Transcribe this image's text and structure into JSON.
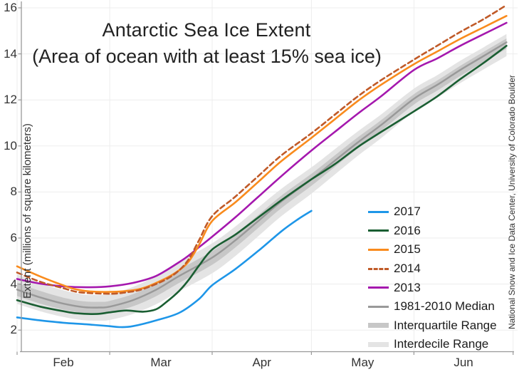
{
  "title": "Antarctic Sea Ice Extent",
  "subtitle": "(Area of ocean with at least 15% sea ice)",
  "y_axis_label": "Extent (millions of square kilometers)",
  "credit": "National Snow and Ice Data Center, University of Colorado Boulder",
  "colors": {
    "y2017": "#1e96e8",
    "y2016": "#1a5e32",
    "y2015": "#f98b1d",
    "y2014": "#c05a28",
    "y2013": "#a518ae",
    "median": "#999999",
    "interquartile": "#c7c7c7",
    "interdecile": "#e4e4e4",
    "grid": "#ededed",
    "axis": "#999999",
    "text": "#333333"
  },
  "chart_data": {
    "type": "line",
    "title": "Antarctic Sea Ice Extent",
    "subtitle": "(Area of ocean with at least 15% sea ice)",
    "xlabel": "",
    "ylabel": "Extent (millions of square kilometers)",
    "x_unit_note": "x = days since Feb 1",
    "ylim": [
      1.05,
      16.35
    ],
    "grid": true,
    "legend_position": "inside lower right",
    "yticks": [
      16,
      14,
      12,
      10,
      8,
      6,
      4,
      2
    ],
    "xticks": [
      {
        "label": "Feb",
        "boundary_day": 0,
        "label_day": 14
      },
      {
        "label": "Mar",
        "boundary_day": 28,
        "label_day": 43.5
      },
      {
        "label": "Apr",
        "boundary_day": 59,
        "label_day": 74
      },
      {
        "label": "May",
        "boundary_day": 89,
        "label_day": 104.5
      },
      {
        "label": "Jun",
        "boundary_day": 120,
        "label_day": 135
      },
      {
        "label": "",
        "boundary_day": 150,
        "label_day": null
      }
    ],
    "bands": [
      {
        "name": "Interdecile Range",
        "color": "#e4e4e4",
        "x": [
          0,
          7,
          14,
          20,
          25,
          28,
          35,
          42,
          49,
          59,
          66,
          73,
          80,
          89,
          96,
          103,
          110,
          120,
          127,
          134,
          141,
          148
        ],
        "hi": [
          4.42,
          4.04,
          3.73,
          3.55,
          3.53,
          3.57,
          3.87,
          4.35,
          4.97,
          5.77,
          6.5,
          7.33,
          8.15,
          9.07,
          9.85,
          10.63,
          11.36,
          12.49,
          13.07,
          13.7,
          14.28,
          14.86
        ],
        "lo": [
          3.14,
          2.82,
          2.57,
          2.43,
          2.41,
          2.44,
          2.7,
          3.12,
          3.69,
          4.47,
          5.22,
          6.09,
          6.96,
          7.93,
          8.75,
          9.57,
          10.33,
          11.49,
          12.09,
          12.73,
          13.32,
          13.9
        ]
      },
      {
        "name": "Interquartile Range",
        "color": "#c7c7c7",
        "x": [
          0,
          7,
          14,
          20,
          25,
          28,
          35,
          42,
          49,
          59,
          66,
          73,
          80,
          89,
          96,
          103,
          110,
          120,
          127,
          134,
          141,
          148
        ],
        "hi": [
          4.06,
          3.7,
          3.41,
          3.25,
          3.23,
          3.27,
          3.56,
          4.02,
          4.63,
          5.43,
          6.17,
          7.01,
          7.85,
          8.79,
          9.58,
          10.37,
          11.11,
          12.25,
          12.84,
          13.48,
          14.08,
          14.67
        ],
        "lo": [
          3.48,
          3.15,
          2.89,
          2.74,
          2.72,
          2.76,
          3.03,
          3.47,
          4.05,
          4.84,
          5.59,
          6.45,
          7.31,
          8.27,
          9.08,
          9.89,
          10.65,
          11.8,
          12.4,
          13.04,
          13.63,
          14.22
        ]
      }
    ],
    "series": [
      {
        "name": "1981-2010 Median",
        "color": "#999999",
        "style": "solid",
        "width": 2.4,
        "points": [
          [
            0,
            3.76
          ],
          [
            7,
            3.42
          ],
          [
            14,
            3.15
          ],
          [
            20,
            3.0
          ],
          [
            25,
            2.98
          ],
          [
            28,
            3.02
          ],
          [
            35,
            3.3
          ],
          [
            42,
            3.75
          ],
          [
            49,
            4.35
          ],
          [
            59,
            5.15
          ],
          [
            66,
            5.9
          ],
          [
            73,
            6.75
          ],
          [
            80,
            7.6
          ],
          [
            89,
            8.55
          ],
          [
            96,
            9.35
          ],
          [
            103,
            10.15
          ],
          [
            110,
            10.9
          ],
          [
            120,
            12.05
          ],
          [
            127,
            12.65
          ],
          [
            134,
            13.3
          ],
          [
            141,
            13.9
          ],
          [
            148,
            14.5
          ]
        ]
      },
      {
        "name": "2016",
        "color": "#1a5e32",
        "style": "solid",
        "width": 2.6,
        "points": [
          [
            0,
            3.3
          ],
          [
            7,
            3.02
          ],
          [
            14,
            2.82
          ],
          [
            18,
            2.73
          ],
          [
            24,
            2.7
          ],
          [
            28,
            2.77
          ],
          [
            33,
            2.85
          ],
          [
            38,
            2.8
          ],
          [
            42,
            2.9
          ],
          [
            45,
            3.2
          ],
          [
            49,
            3.7
          ],
          [
            52,
            4.2
          ],
          [
            55,
            4.8
          ],
          [
            59,
            5.5
          ],
          [
            66,
            6.15
          ],
          [
            73,
            6.9
          ],
          [
            80,
            7.65
          ],
          [
            89,
            8.55
          ],
          [
            96,
            9.2
          ],
          [
            103,
            9.95
          ],
          [
            110,
            10.6
          ],
          [
            120,
            11.5
          ],
          [
            127,
            12.15
          ],
          [
            134,
            12.9
          ],
          [
            141,
            13.6
          ],
          [
            148,
            14.35
          ]
        ]
      },
      {
        "name": "2013",
        "color": "#a518ae",
        "style": "solid",
        "width": 2.6,
        "points": [
          [
            0,
            4.22
          ],
          [
            7,
            4.02
          ],
          [
            14,
            3.9
          ],
          [
            21,
            3.86
          ],
          [
            28,
            3.9
          ],
          [
            35,
            4.05
          ],
          [
            42,
            4.35
          ],
          [
            49,
            4.95
          ],
          [
            52,
            5.25
          ],
          [
            55,
            5.6
          ],
          [
            59,
            6.06
          ],
          [
            66,
            6.9
          ],
          [
            73,
            7.8
          ],
          [
            80,
            8.7
          ],
          [
            89,
            9.8
          ],
          [
            96,
            10.6
          ],
          [
            103,
            11.4
          ],
          [
            110,
            12.15
          ],
          [
            120,
            13.3
          ],
          [
            127,
            13.8
          ],
          [
            134,
            14.35
          ],
          [
            141,
            14.85
          ],
          [
            148,
            15.35
          ]
        ]
      },
      {
        "name": "2015",
        "color": "#f98b1d",
        "style": "solid",
        "width": 2.6,
        "points": [
          [
            0,
            4.77
          ],
          [
            7,
            4.33
          ],
          [
            12,
            4.05
          ],
          [
            17,
            3.8
          ],
          [
            22,
            3.68
          ],
          [
            28,
            3.66
          ],
          [
            33,
            3.7
          ],
          [
            38,
            3.82
          ],
          [
            45,
            4.25
          ],
          [
            49,
            4.6
          ],
          [
            52,
            5.0
          ],
          [
            55,
            5.7
          ],
          [
            59,
            6.74
          ],
          [
            66,
            7.55
          ],
          [
            73,
            8.45
          ],
          [
            80,
            9.35
          ],
          [
            89,
            10.35
          ],
          [
            96,
            11.15
          ],
          [
            103,
            11.95
          ],
          [
            110,
            12.65
          ],
          [
            120,
            13.55
          ],
          [
            127,
            14.1
          ],
          [
            134,
            14.65
          ],
          [
            141,
            15.15
          ],
          [
            148,
            15.65
          ]
        ]
      },
      {
        "name": "2014",
        "color": "#c05a28",
        "style": "dashed",
        "width": 2.6,
        "points": [
          [
            0,
            4.5
          ],
          [
            7,
            4.1
          ],
          [
            14,
            3.82
          ],
          [
            19,
            3.64
          ],
          [
            28,
            3.58
          ],
          [
            33,
            3.64
          ],
          [
            38,
            3.78
          ],
          [
            45,
            4.2
          ],
          [
            49,
            4.6
          ],
          [
            52,
            5.1
          ],
          [
            55,
            5.9
          ],
          [
            59,
            6.95
          ],
          [
            66,
            7.8
          ],
          [
            73,
            8.7
          ],
          [
            80,
            9.6
          ],
          [
            89,
            10.55
          ],
          [
            96,
            11.35
          ],
          [
            103,
            12.15
          ],
          [
            110,
            12.85
          ],
          [
            120,
            13.75
          ],
          [
            127,
            14.35
          ],
          [
            134,
            14.95
          ],
          [
            141,
            15.5
          ],
          [
            148,
            16.12
          ]
        ]
      },
      {
        "name": "2017",
        "color": "#1e96e8",
        "style": "solid",
        "width": 2.6,
        "points": [
          [
            0,
            2.55
          ],
          [
            7,
            2.42
          ],
          [
            14,
            2.32
          ],
          [
            21,
            2.25
          ],
          [
            28,
            2.17
          ],
          [
            31,
            2.13
          ],
          [
            35,
            2.17
          ],
          [
            42,
            2.42
          ],
          [
            49,
            2.75
          ],
          [
            55,
            3.35
          ],
          [
            59,
            3.95
          ],
          [
            66,
            4.65
          ],
          [
            73,
            5.45
          ],
          [
            80,
            6.3
          ],
          [
            85,
            6.82
          ],
          [
            89,
            7.18
          ]
        ]
      }
    ],
    "legend": [
      {
        "label": "2017",
        "color": "#1e96e8",
        "swatch": "line"
      },
      {
        "label": "2016",
        "color": "#1a5e32",
        "swatch": "line"
      },
      {
        "label": "2015",
        "color": "#f98b1d",
        "swatch": "line"
      },
      {
        "label": "2014",
        "color": "#c05a28",
        "swatch": "dashed"
      },
      {
        "label": "2013",
        "color": "#a518ae",
        "swatch": "line"
      },
      {
        "label": "1981-2010 Median",
        "color": "#999999",
        "swatch": "line"
      },
      {
        "label": "Interquartile Range",
        "color": "#c7c7c7",
        "swatch": "band"
      },
      {
        "label": "Interdecile Range",
        "color": "#e4e4e4",
        "swatch": "band"
      }
    ]
  }
}
